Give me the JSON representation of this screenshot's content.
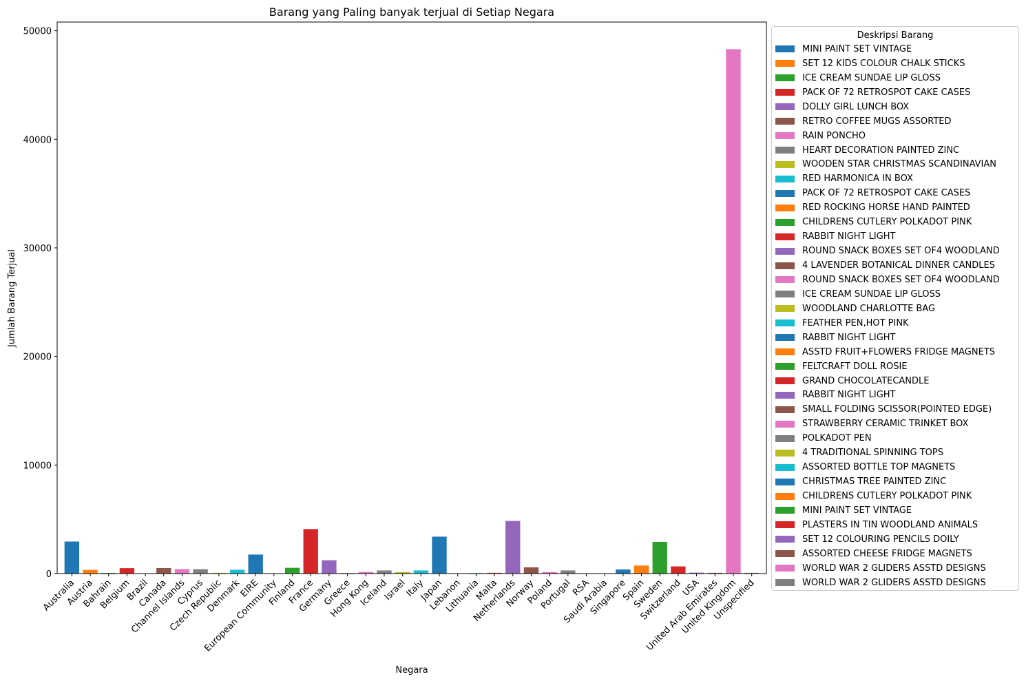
{
  "chart_data": {
    "type": "bar",
    "title": "Barang yang Paling banyak terjual di Setiap Negara",
    "xlabel": "Negara",
    "ylabel": "Jumlah Barang Terjual",
    "ylim": [
      0,
      50800
    ],
    "yticks": [
      0,
      10000,
      20000,
      30000,
      40000,
      50000
    ],
    "grid": false,
    "legend_title": "Deskripsi Barang",
    "legend_position": "outside-right",
    "palette": [
      "#1f77b4",
      "#ff7f0e",
      "#2ca02c",
      "#d62728",
      "#9467bd",
      "#8c564b",
      "#e377c2",
      "#7f7f7f",
      "#bcbd22",
      "#17becf"
    ],
    "categories": [
      "Australia",
      "Austria",
      "Bahrain",
      "Belgium",
      "Brazil",
      "Canada",
      "Channel Islands",
      "Cyprus",
      "Czech Republic",
      "Denmark",
      "EIRE",
      "European Community",
      "Finland",
      "France",
      "Germany",
      "Greece",
      "Hong Kong",
      "Iceland",
      "Israel",
      "Italy",
      "Japan",
      "Lebanon",
      "Lithuania",
      "Malta",
      "Netherlands",
      "Norway",
      "Poland",
      "Portugal",
      "RSA",
      "Saudi Arabia",
      "Singapore",
      "Spain",
      "Sweden",
      "Switzerland",
      "USA",
      "United Arab Emirates",
      "United Kingdom",
      "Unspecified"
    ],
    "values": [
      2950,
      340,
      60,
      500,
      24,
      510,
      410,
      400,
      72,
      350,
      1750,
      24,
      530,
      4100,
      1230,
      48,
      150,
      290,
      140,
      290,
      3400,
      24,
      48,
      72,
      4850,
      580,
      140,
      290,
      20,
      12,
      380,
      740,
      2920,
      660,
      88,
      72,
      48300,
      72
    ],
    "series_names": [
      "MINI PAINT SET VINTAGE",
      "SET 12 KIDS COLOUR  CHALK STICKS",
      "ICE CREAM SUNDAE LIP GLOSS",
      "PACK OF 72 RETROSPOT CAKE CASES",
      "DOLLY GIRL LUNCH BOX",
      "RETRO COFFEE MUGS ASSORTED",
      "RAIN PONCHO",
      "HEART DECORATION PAINTED ZINC",
      "WOODEN STAR CHRISTMAS SCANDINAVIAN",
      "RED  HARMONICA IN BOX",
      "PACK OF 72 RETROSPOT CAKE CASES",
      "RED ROCKING HORSE HAND PAINTED",
      "CHILDRENS CUTLERY POLKADOT PINK",
      "RABBIT NIGHT LIGHT",
      "ROUND SNACK BOXES SET OF4 WOODLAND",
      "4 LAVENDER BOTANICAL DINNER CANDLES",
      "ROUND SNACK BOXES SET OF4 WOODLAND",
      "ICE CREAM SUNDAE LIP GLOSS",
      "WOODLAND CHARLOTTE BAG",
      "FEATHER PEN,HOT PINK",
      "RABBIT NIGHT LIGHT",
      "ASSTD FRUIT+FLOWERS FRIDGE MAGNETS",
      "FELTCRAFT DOLL ROSIE",
      "GRAND CHOCOLATECANDLE",
      "RABBIT NIGHT LIGHT",
      "SMALL FOLDING SCISSOR(POINTED EDGE)",
      "STRAWBERRY CERAMIC TRINKET BOX",
      "POLKADOT PEN",
      "4 TRADITIONAL SPINNING TOPS",
      "ASSORTED BOTTLE TOP  MAGNETS",
      "CHRISTMAS TREE PAINTED ZINC",
      "CHILDRENS CUTLERY POLKADOT PINK",
      "MINI PAINT SET VINTAGE",
      "PLASTERS IN TIN WOODLAND ANIMALS",
      "SET 12 COLOURING PENCILS DOILY",
      "ASSORTED CHEESE FRIDGE MAGNETS",
      "WORLD WAR 2 GLIDERS ASSTD DESIGNS",
      "WORLD WAR 2 GLIDERS ASSTD DESIGNS"
    ]
  }
}
